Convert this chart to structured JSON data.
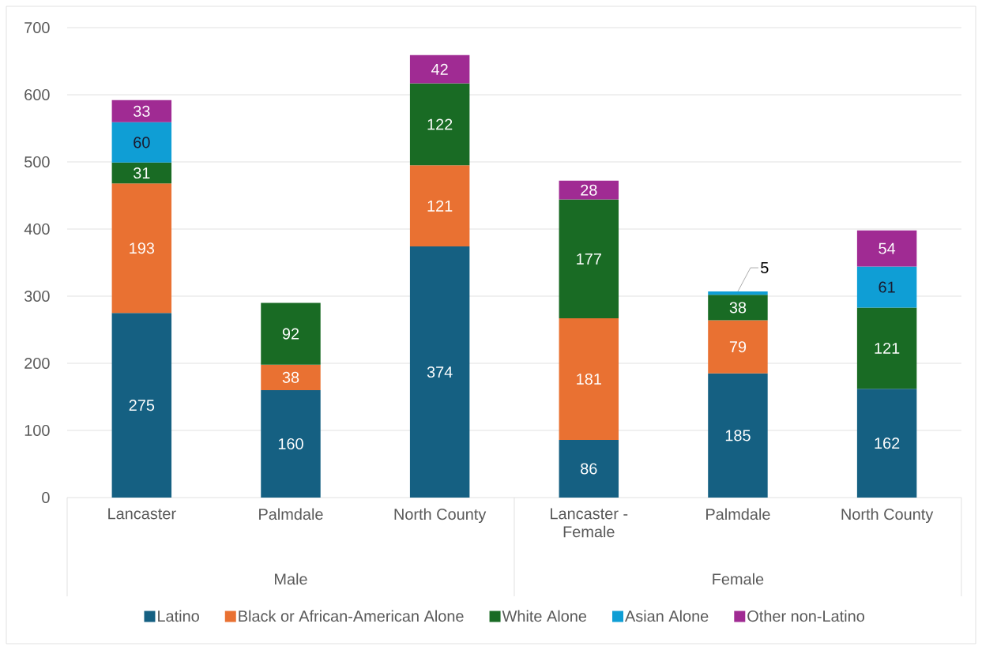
{
  "chart_data": {
    "type": "bar",
    "stacked": true,
    "categories": [
      "Lancaster",
      "Palmdale",
      "North County",
      "Lancaster - Female",
      "Palmdale",
      "North County"
    ],
    "series": [
      {
        "name": "Latino",
        "color": "#156082",
        "values": [
          275,
          160,
          374,
          86,
          185,
          162
        ]
      },
      {
        "name": "Black or African-American Alone",
        "color": "#e97132",
        "values": [
          193,
          38,
          121,
          181,
          79,
          null
        ]
      },
      {
        "name": "White Alone",
        "color": "#196b24",
        "values": [
          31,
          92,
          122,
          177,
          38,
          121
        ]
      },
      {
        "name": "Asian Alone",
        "color": "#0f9ed5",
        "values": [
          60,
          null,
          null,
          null,
          5,
          61
        ]
      },
      {
        "name": "Other non-Latino",
        "color": "#a02b93",
        "values": [
          33,
          null,
          42,
          28,
          null,
          54
        ]
      }
    ],
    "ylim": [
      0,
      700
    ],
    "yticks": [
      0,
      100,
      200,
      300,
      400,
      500,
      600,
      700
    ],
    "grid": "y",
    "legend": "bottom",
    "data_labels": true,
    "annotations": [
      "Male",
      "Female"
    ]
  }
}
